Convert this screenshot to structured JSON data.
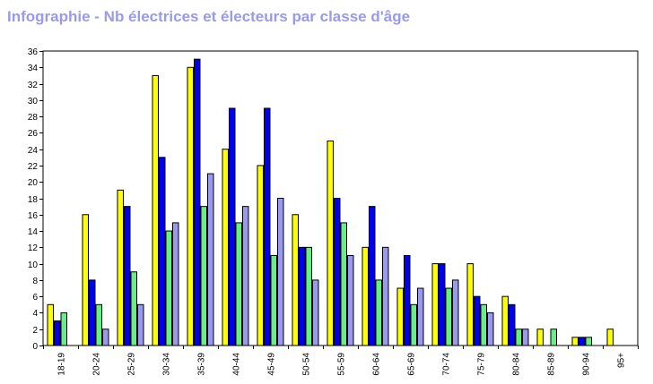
{
  "title": "Infographie - Nb électrices et électeurs par classe d'âge",
  "chart_data": {
    "type": "bar",
    "title": "Infographie - Nb électrices et électeurs par classe d'âge",
    "xlabel": "",
    "ylabel": "",
    "ylim": [
      0,
      36
    ],
    "yticks": [
      0,
      2,
      4,
      6,
      8,
      10,
      12,
      14,
      16,
      18,
      20,
      22,
      24,
      26,
      28,
      30,
      32,
      34,
      36
    ],
    "grid": false,
    "categories": [
      "18-19",
      "20-24",
      "25-29",
      "30-34",
      "35-39",
      "40-44",
      "45-49",
      "50-54",
      "55-59",
      "60-64",
      "65-69",
      "70-74",
      "75-79",
      "80-84",
      "85-89",
      "90-94",
      "95+"
    ],
    "series": [
      {
        "color": "#ffff00",
        "values": [
          5,
          16,
          19,
          33,
          34,
          24,
          22,
          16,
          25,
          12,
          7,
          10,
          10,
          6,
          2,
          1,
          2
        ]
      },
      {
        "color": "#0000ee",
        "values": [
          3,
          8,
          17,
          23,
          35,
          29,
          29,
          12,
          18,
          17,
          11,
          10,
          6,
          5,
          0,
          1,
          0
        ]
      },
      {
        "color": "#66ee88",
        "values": [
          4,
          5,
          9,
          14,
          17,
          15,
          11,
          12,
          15,
          8,
          5,
          7,
          5,
          2,
          2,
          1,
          0
        ]
      },
      {
        "color": "#9999ee",
        "values": [
          0,
          2,
          5,
          15,
          21,
          17,
          18,
          8,
          11,
          12,
          7,
          8,
          4,
          2,
          0,
          0,
          0
        ]
      }
    ]
  }
}
